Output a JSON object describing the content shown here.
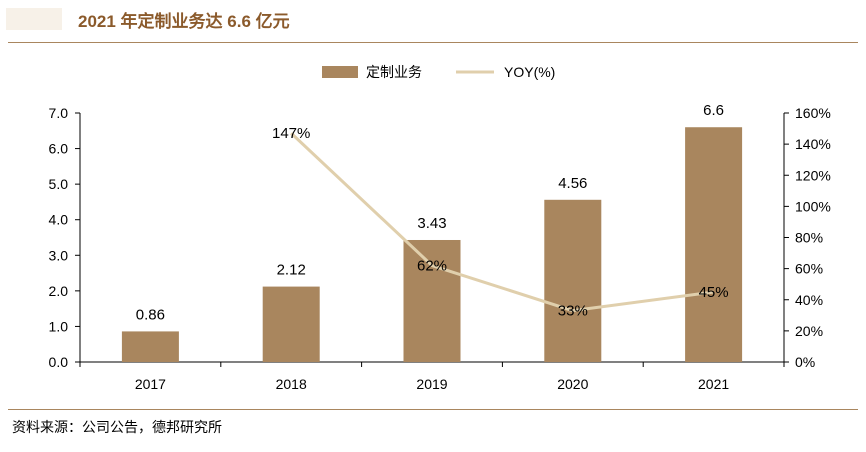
{
  "header": {
    "title": "2021 年定制业务达 6.6 亿元"
  },
  "footer": {
    "source": "资料来源：公司公告，德邦研究所"
  },
  "colors": {
    "bar": "#a9865e",
    "line": "#e0cfac",
    "title": "#8b5a2b",
    "rule": "#a9865e"
  },
  "chart_data": {
    "type": "bar",
    "categories": [
      "2017",
      "2018",
      "2019",
      "2020",
      "2021"
    ],
    "series": [
      {
        "name": "定制业务",
        "type": "bar",
        "axis": "left",
        "values": [
          0.86,
          2.12,
          3.43,
          4.56,
          6.6
        ],
        "labels": [
          "0.86",
          "2.12",
          "3.43",
          "4.56",
          "6.6"
        ]
      },
      {
        "name": "YOY(%)",
        "type": "line",
        "axis": "right",
        "values": [
          null,
          147,
          62,
          33,
          45
        ],
        "labels": [
          "",
          "147%",
          "62%",
          "33%",
          "45%"
        ]
      }
    ],
    "left_axis": {
      "min": 0,
      "max": 7,
      "ticks": [
        0,
        1,
        2,
        3,
        4,
        5,
        6,
        7
      ],
      "tick_labels": [
        "0.0",
        "1.0",
        "2.0",
        "3.0",
        "4.0",
        "5.0",
        "6.0",
        "7.0"
      ]
    },
    "right_axis": {
      "min": 0,
      "max": 160,
      "ticks": [
        0,
        20,
        40,
        60,
        80,
        100,
        120,
        140,
        160
      ],
      "tick_labels": [
        "0%",
        "20%",
        "40%",
        "60%",
        "80%",
        "100%",
        "120%",
        "140%",
        "160%"
      ]
    },
    "legend_position": "top-center",
    "grid": false
  }
}
